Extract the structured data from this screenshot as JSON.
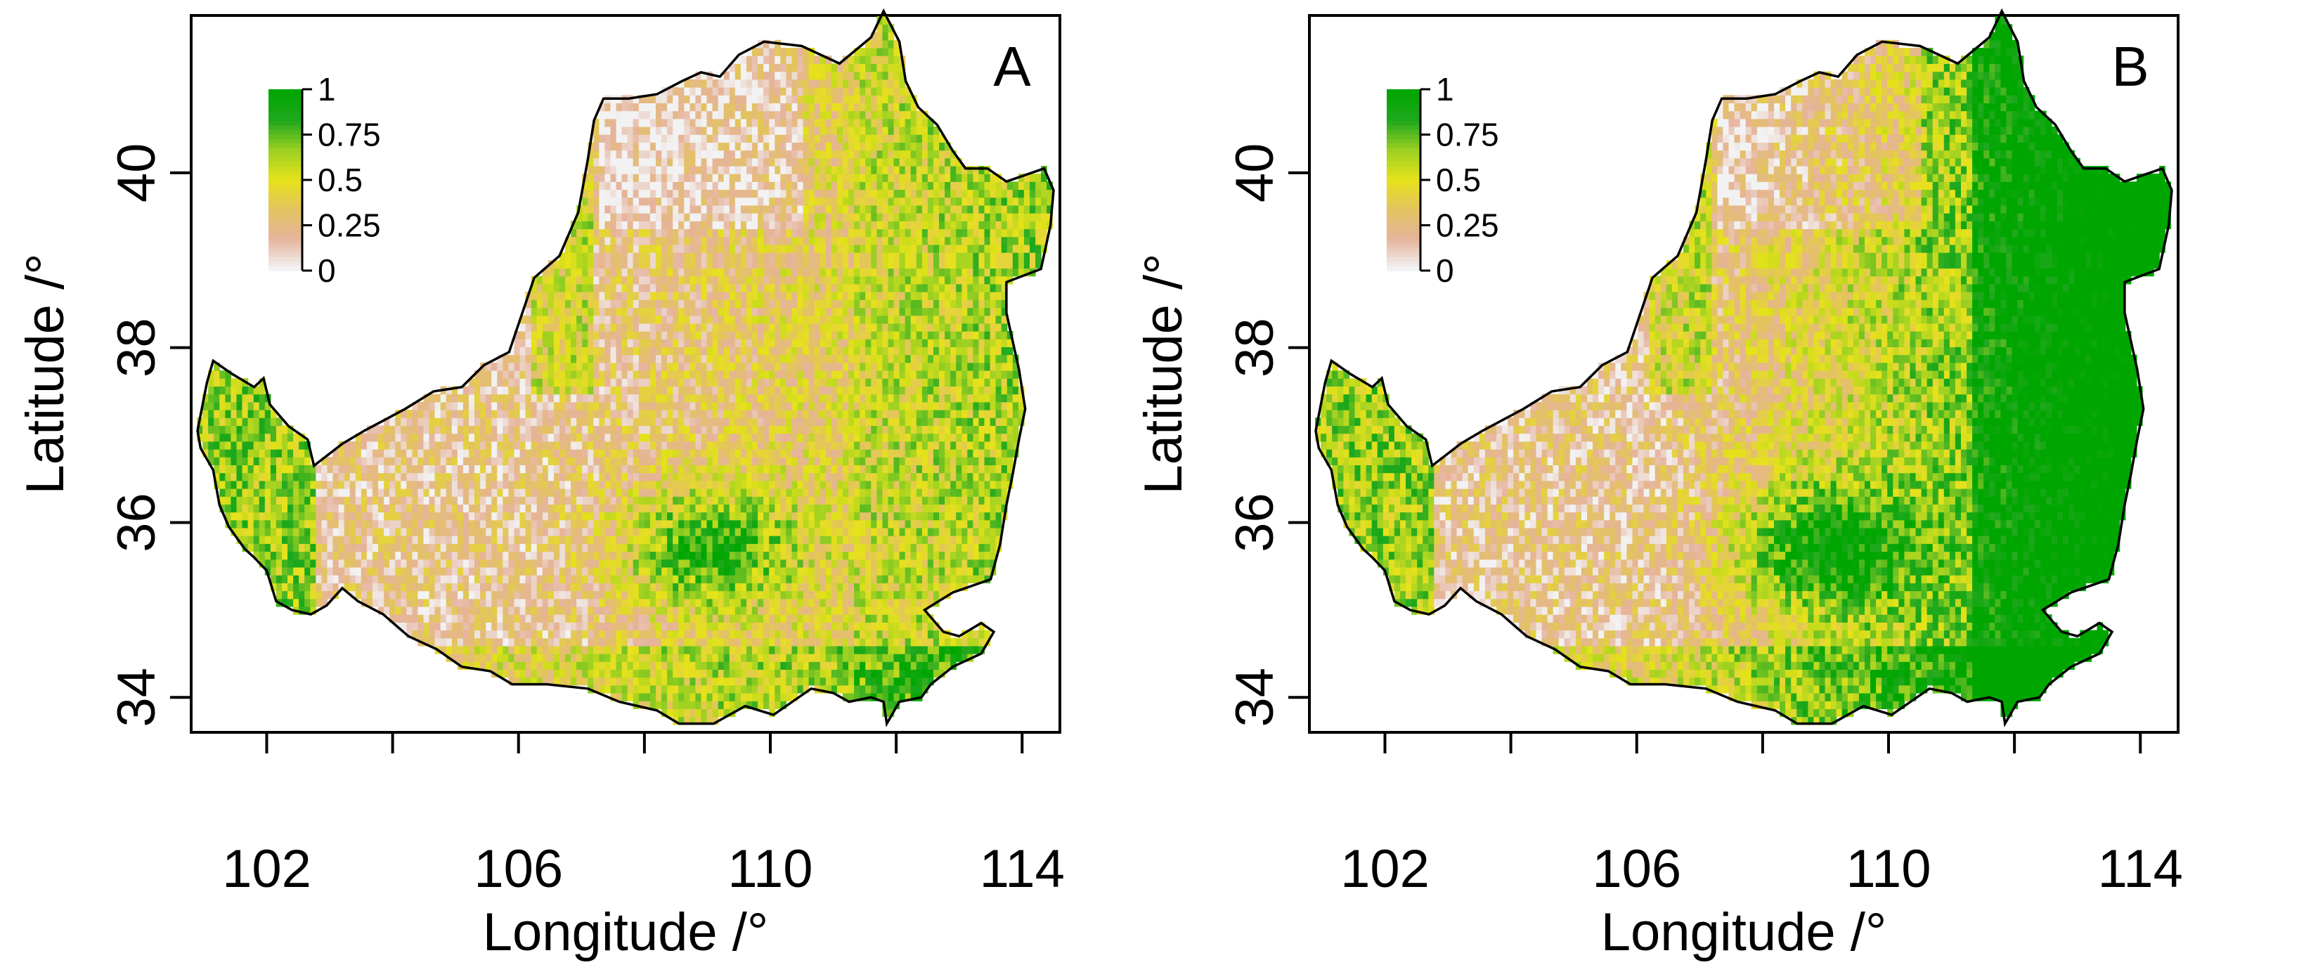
{
  "figure": {
    "panels": [
      {
        "label": "A",
        "xlabel": "Longitude /°",
        "ylabel": "Latitude /°",
        "x_ticks": [
          102,
          106,
          110,
          114
        ],
        "y_ticks": [
          34,
          36,
          38,
          40
        ],
        "xlim": [
          100.8,
          114.6
        ],
        "ylim": [
          33.6,
          41.8
        ],
        "legend": {
          "placement": "top-left",
          "ticks": [
            "1",
            "0.75",
            "0.5",
            "0.25",
            "0"
          ]
        },
        "high_fraction": 0.25
      },
      {
        "label": "B",
        "xlabel": "Longitude /°",
        "ylabel": "Latitude /°",
        "x_ticks": [
          102,
          106,
          110,
          114
        ],
        "y_ticks": [
          34,
          36,
          38,
          40
        ],
        "xlim": [
          100.8,
          114.6
        ],
        "ylim": [
          33.6,
          41.8
        ],
        "legend": {
          "placement": "top-left",
          "ticks": [
            "1",
            "0.75",
            "0.5",
            "0.25",
            "0"
          ]
        },
        "high_fraction": 0.6
      }
    ],
    "color_scale": [
      "#f2f2f2",
      "#e6b39b",
      "#e3c35f",
      "#e6e21a",
      "#9cd022",
      "#20a81e",
      "#00a600"
    ]
  }
}
